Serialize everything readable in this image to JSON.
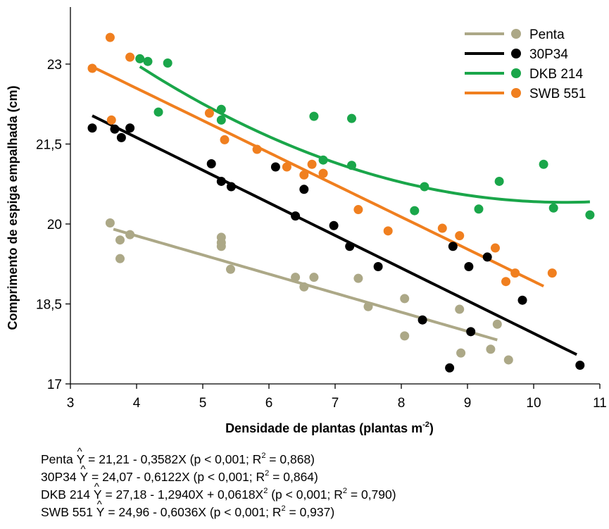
{
  "colors": {
    "Penta": "#aca887",
    "30P34": "#000000",
    "DKB 214": "#1aa64a",
    "SWB 551": "#f07f1f"
  },
  "chart_data": {
    "type": "scatter",
    "xlabel_main": "Densidade de plantas (plantas m",
    "xlabel_sup": "-2",
    "xlabel_end": ")",
    "ylabel": "Comprimento de espiga empalhada (cm)",
    "xlim": [
      3,
      11
    ],
    "ylim": [
      17,
      24
    ],
    "xticks": [
      3,
      4,
      5,
      6,
      7,
      8,
      9,
      10,
      11
    ],
    "xtick_labels": [
      "3",
      "4",
      "5",
      "6",
      "7",
      "8",
      "9",
      "10",
      "11"
    ],
    "yticks": [
      17,
      18.5,
      20,
      21.5,
      23
    ],
    "ytick_labels": [
      "17",
      "18,5",
      "20",
      "21,5",
      "23"
    ],
    "legend_position": "top-right",
    "series": [
      {
        "name": "Penta",
        "fit": {
          "coef": [
            21.21,
            -0.3582,
            0
          ],
          "x_range": [
            3.65,
            9.45
          ]
        },
        "points": [
          [
            3.6,
            20.02
          ],
          [
            3.75,
            19.7
          ],
          [
            3.75,
            19.35
          ],
          [
            3.9,
            19.8
          ],
          [
            5.28,
            19.75
          ],
          [
            5.28,
            19.65
          ],
          [
            5.28,
            19.58
          ],
          [
            5.42,
            19.15
          ],
          [
            6.4,
            19.0
          ],
          [
            6.53,
            18.82
          ],
          [
            6.68,
            19.0
          ],
          [
            7.35,
            18.98
          ],
          [
            7.5,
            18.45
          ],
          [
            8.05,
            18.6
          ],
          [
            8.05,
            17.9
          ],
          [
            8.88,
            18.4
          ],
          [
            8.9,
            17.58
          ],
          [
            9.35,
            17.65
          ],
          [
            9.45,
            18.12
          ],
          [
            9.62,
            17.45
          ]
        ]
      },
      {
        "name": "30P34",
        "fit": {
          "coef": [
            24.07,
            -0.6122,
            0
          ],
          "x_range": [
            3.33,
            10.65
          ]
        },
        "points": [
          [
            3.33,
            21.8
          ],
          [
            3.67,
            21.78
          ],
          [
            3.77,
            21.62
          ],
          [
            3.9,
            21.8
          ],
          [
            5.13,
            21.13
          ],
          [
            5.28,
            20.8
          ],
          [
            5.43,
            20.7
          ],
          [
            6.1,
            21.07
          ],
          [
            6.4,
            20.15
          ],
          [
            6.53,
            20.65
          ],
          [
            6.98,
            19.97
          ],
          [
            7.22,
            19.58
          ],
          [
            7.65,
            19.2
          ],
          [
            8.32,
            18.2
          ],
          [
            8.73,
            17.3
          ],
          [
            8.78,
            19.58
          ],
          [
            9.02,
            19.2
          ],
          [
            9.05,
            17.98
          ],
          [
            9.3,
            19.38
          ],
          [
            9.83,
            18.57
          ],
          [
            10.7,
            17.35
          ]
        ]
      },
      {
        "name": "DKB 214",
        "fit": {
          "coef": [
            27.18,
            -1.294,
            0.0618
          ],
          "x_range": [
            4.05,
            10.85
          ]
        },
        "points": [
          [
            4.05,
            23.1
          ],
          [
            4.17,
            23.05
          ],
          [
            4.33,
            22.1
          ],
          [
            4.47,
            23.02
          ],
          [
            5.28,
            22.15
          ],
          [
            5.28,
            21.95
          ],
          [
            6.68,
            22.02
          ],
          [
            6.82,
            21.2
          ],
          [
            7.25,
            21.98
          ],
          [
            7.25,
            21.1
          ],
          [
            8.2,
            20.25
          ],
          [
            8.35,
            20.7
          ],
          [
            9.17,
            20.28
          ],
          [
            9.48,
            20.8
          ],
          [
            10.15,
            21.12
          ],
          [
            10.3,
            20.3
          ],
          [
            10.85,
            20.17
          ]
        ]
      },
      {
        "name": "SWB 551",
        "fit": {
          "coef": [
            24.96,
            -0.6036,
            0
          ],
          "x_range": [
            3.33,
            10.15
          ]
        },
        "points": [
          [
            3.33,
            22.92
          ],
          [
            3.6,
            23.5
          ],
          [
            3.62,
            21.95
          ],
          [
            3.9,
            23.13
          ],
          [
            5.1,
            22.08
          ],
          [
            5.33,
            21.58
          ],
          [
            5.82,
            21.4
          ],
          [
            6.27,
            21.07
          ],
          [
            6.53,
            20.92
          ],
          [
            6.65,
            21.12
          ],
          [
            6.82,
            20.95
          ],
          [
            7.35,
            20.27
          ],
          [
            7.8,
            19.87
          ],
          [
            8.62,
            19.92
          ],
          [
            8.88,
            19.78
          ],
          [
            9.42,
            19.55
          ],
          [
            9.58,
            18.92
          ],
          [
            9.72,
            19.08
          ],
          [
            10.28,
            19.08
          ]
        ]
      }
    ]
  },
  "equations": [
    {
      "name": "Penta",
      "hat": "Y",
      "text": " = 21,21 - 0,3582X (p < 0,001; R",
      "sup": "2",
      "end": " = 0,868)"
    },
    {
      "name": "30P34",
      "hat": "Y",
      "text": " = 24,07 - 0,6122X (p < 0,001; R",
      "sup": "2",
      "end": " = 0,864)"
    },
    {
      "name": "DKB 214",
      "hat": "Y",
      "text": " = 27,18 - 1,2940X + 0,0618X",
      "sup": "2",
      "mid": " (p < 0,001; R",
      "sup2": "2",
      "end": " = 0,790)"
    },
    {
      "name": "SWB 551",
      "hat": "Y",
      "text": " = 24,96 - 0,6036X (p < 0,001; R",
      "sup": "2",
      "end": " = 0,937)"
    }
  ]
}
